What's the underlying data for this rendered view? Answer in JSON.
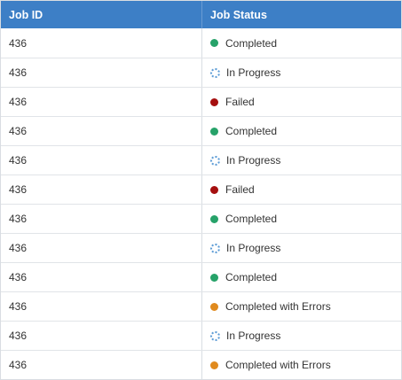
{
  "table": {
    "columns": [
      "Job ID",
      "Job Status"
    ],
    "rows": [
      {
        "job_id": "436",
        "status": "Completed",
        "icon": "completed-dot-icon",
        "color": "#26a269"
      },
      {
        "job_id": "436",
        "status": "In Progress",
        "icon": "progress-spinner-icon",
        "color": "#5b9bd5"
      },
      {
        "job_id": "436",
        "status": "Failed",
        "icon": "failed-dot-icon",
        "color": "#a50f0f"
      },
      {
        "job_id": "436",
        "status": "Completed",
        "icon": "completed-dot-icon",
        "color": "#26a269"
      },
      {
        "job_id": "436",
        "status": "In Progress",
        "icon": "progress-spinner-icon",
        "color": "#5b9bd5"
      },
      {
        "job_id": "436",
        "status": "Failed",
        "icon": "failed-dot-icon",
        "color": "#a50f0f"
      },
      {
        "job_id": "436",
        "status": "Completed",
        "icon": "completed-dot-icon",
        "color": "#26a269"
      },
      {
        "job_id": "436",
        "status": "In Progress",
        "icon": "progress-spinner-icon",
        "color": "#5b9bd5"
      },
      {
        "job_id": "436",
        "status": "Completed",
        "icon": "completed-dot-icon",
        "color": "#26a269"
      },
      {
        "job_id": "436",
        "status": "Completed with Errors",
        "icon": "warning-dot-icon",
        "color": "#e08a1e"
      },
      {
        "job_id": "436",
        "status": "In Progress",
        "icon": "progress-spinner-icon",
        "color": "#5b9bd5"
      },
      {
        "job_id": "436",
        "status": "Completed with Errors",
        "icon": "warning-dot-icon",
        "color": "#e08a1e"
      }
    ]
  },
  "colors": {
    "header_bg": "#3d7fc6"
  }
}
